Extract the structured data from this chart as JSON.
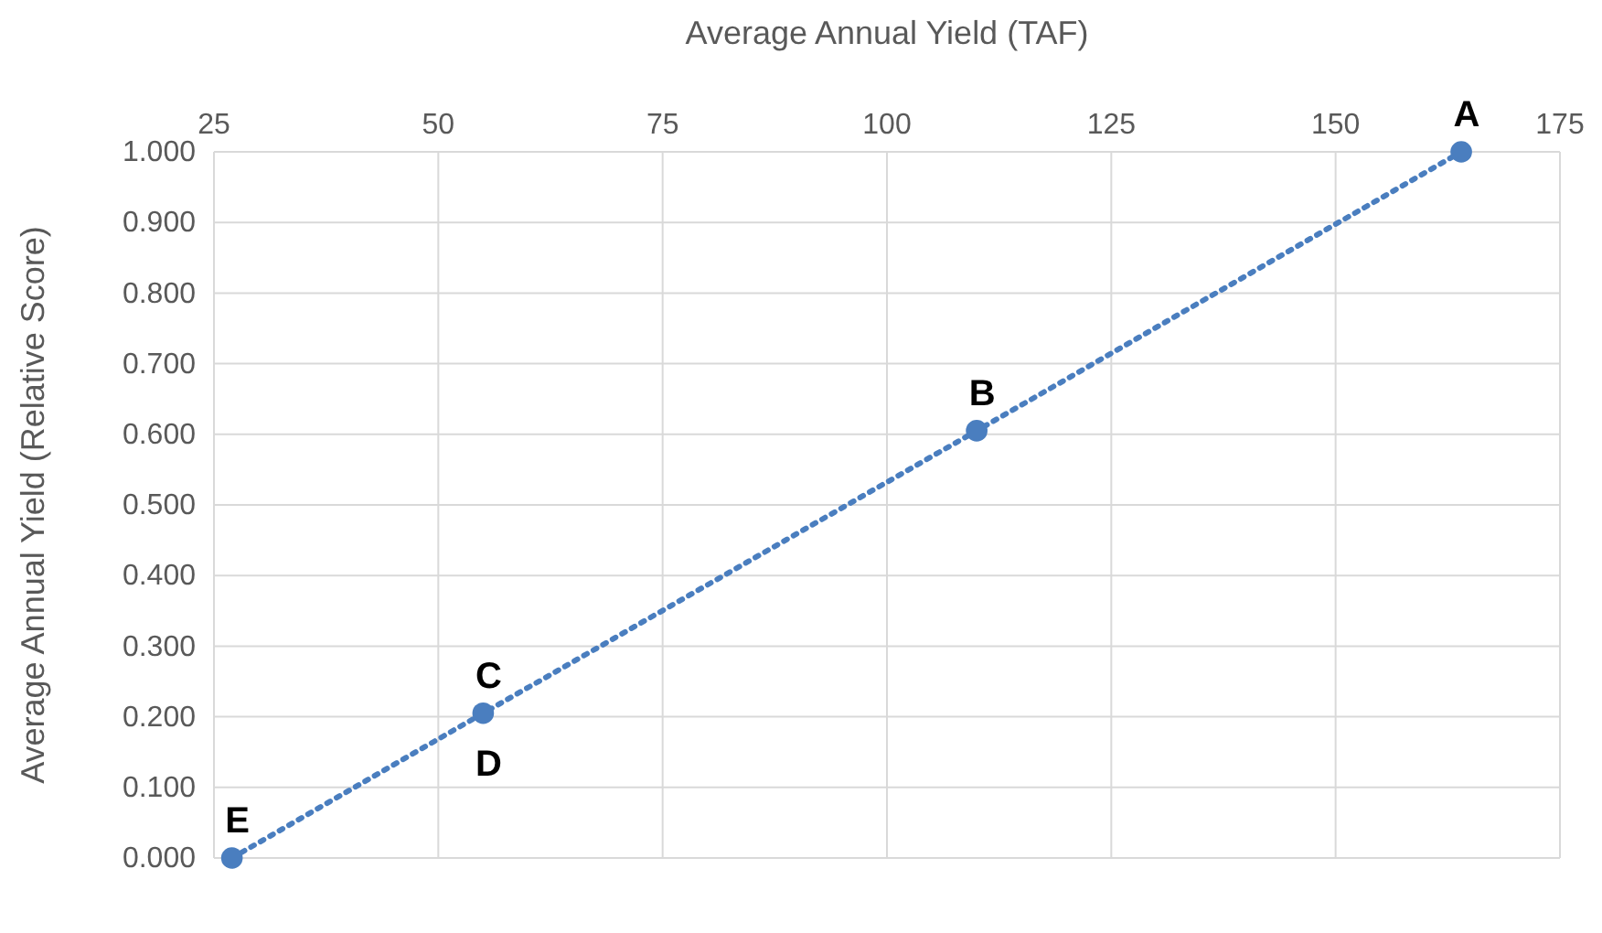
{
  "chart_data": {
    "type": "line",
    "xlabel": "Average Annual Yield (TAF)",
    "ylabel": "Average Annual Yield (Relative Score)",
    "x": [
      27,
      55,
      110,
      164
    ],
    "series": [
      {
        "color": "#4a7ebf",
        "values": [
          0.0,
          0.205,
          0.605,
          1.0
        ]
      }
    ],
    "marker": "circle",
    "line_style": "dotted",
    "grid": true,
    "xlim": [
      25,
      175
    ],
    "xticks": [
      25,
      50,
      75,
      100,
      125,
      150,
      175
    ],
    "ylim": [
      0,
      1
    ],
    "yticks": [
      {
        "value": 0,
        "label": "0.000"
      },
      {
        "value": 0.1,
        "label": "0.100"
      },
      {
        "value": 0.2,
        "label": "0.200"
      },
      {
        "value": 0.3,
        "label": "0.300"
      },
      {
        "value": 0.4,
        "label": "0.400"
      },
      {
        "value": 0.5,
        "label": "0.500"
      },
      {
        "value": 0.6,
        "label": "0.600"
      },
      {
        "value": 0.7,
        "label": "0.700"
      },
      {
        "value": 0.8,
        "label": "0.800"
      },
      {
        "value": 0.9,
        "label": "0.900"
      },
      {
        "value": 1,
        "label": "1.000"
      }
    ],
    "annotations": [
      {
        "text": "E",
        "x": 27,
        "y": 0.0
      },
      {
        "text": "C",
        "x": 55,
        "y": 0.205
      },
      {
        "text": "D",
        "x": 55,
        "y": 0.205
      },
      {
        "text": "B",
        "x": 110,
        "y": 0.605
      },
      {
        "text": "A",
        "x": 164,
        "y": 1.0
      }
    ]
  }
}
